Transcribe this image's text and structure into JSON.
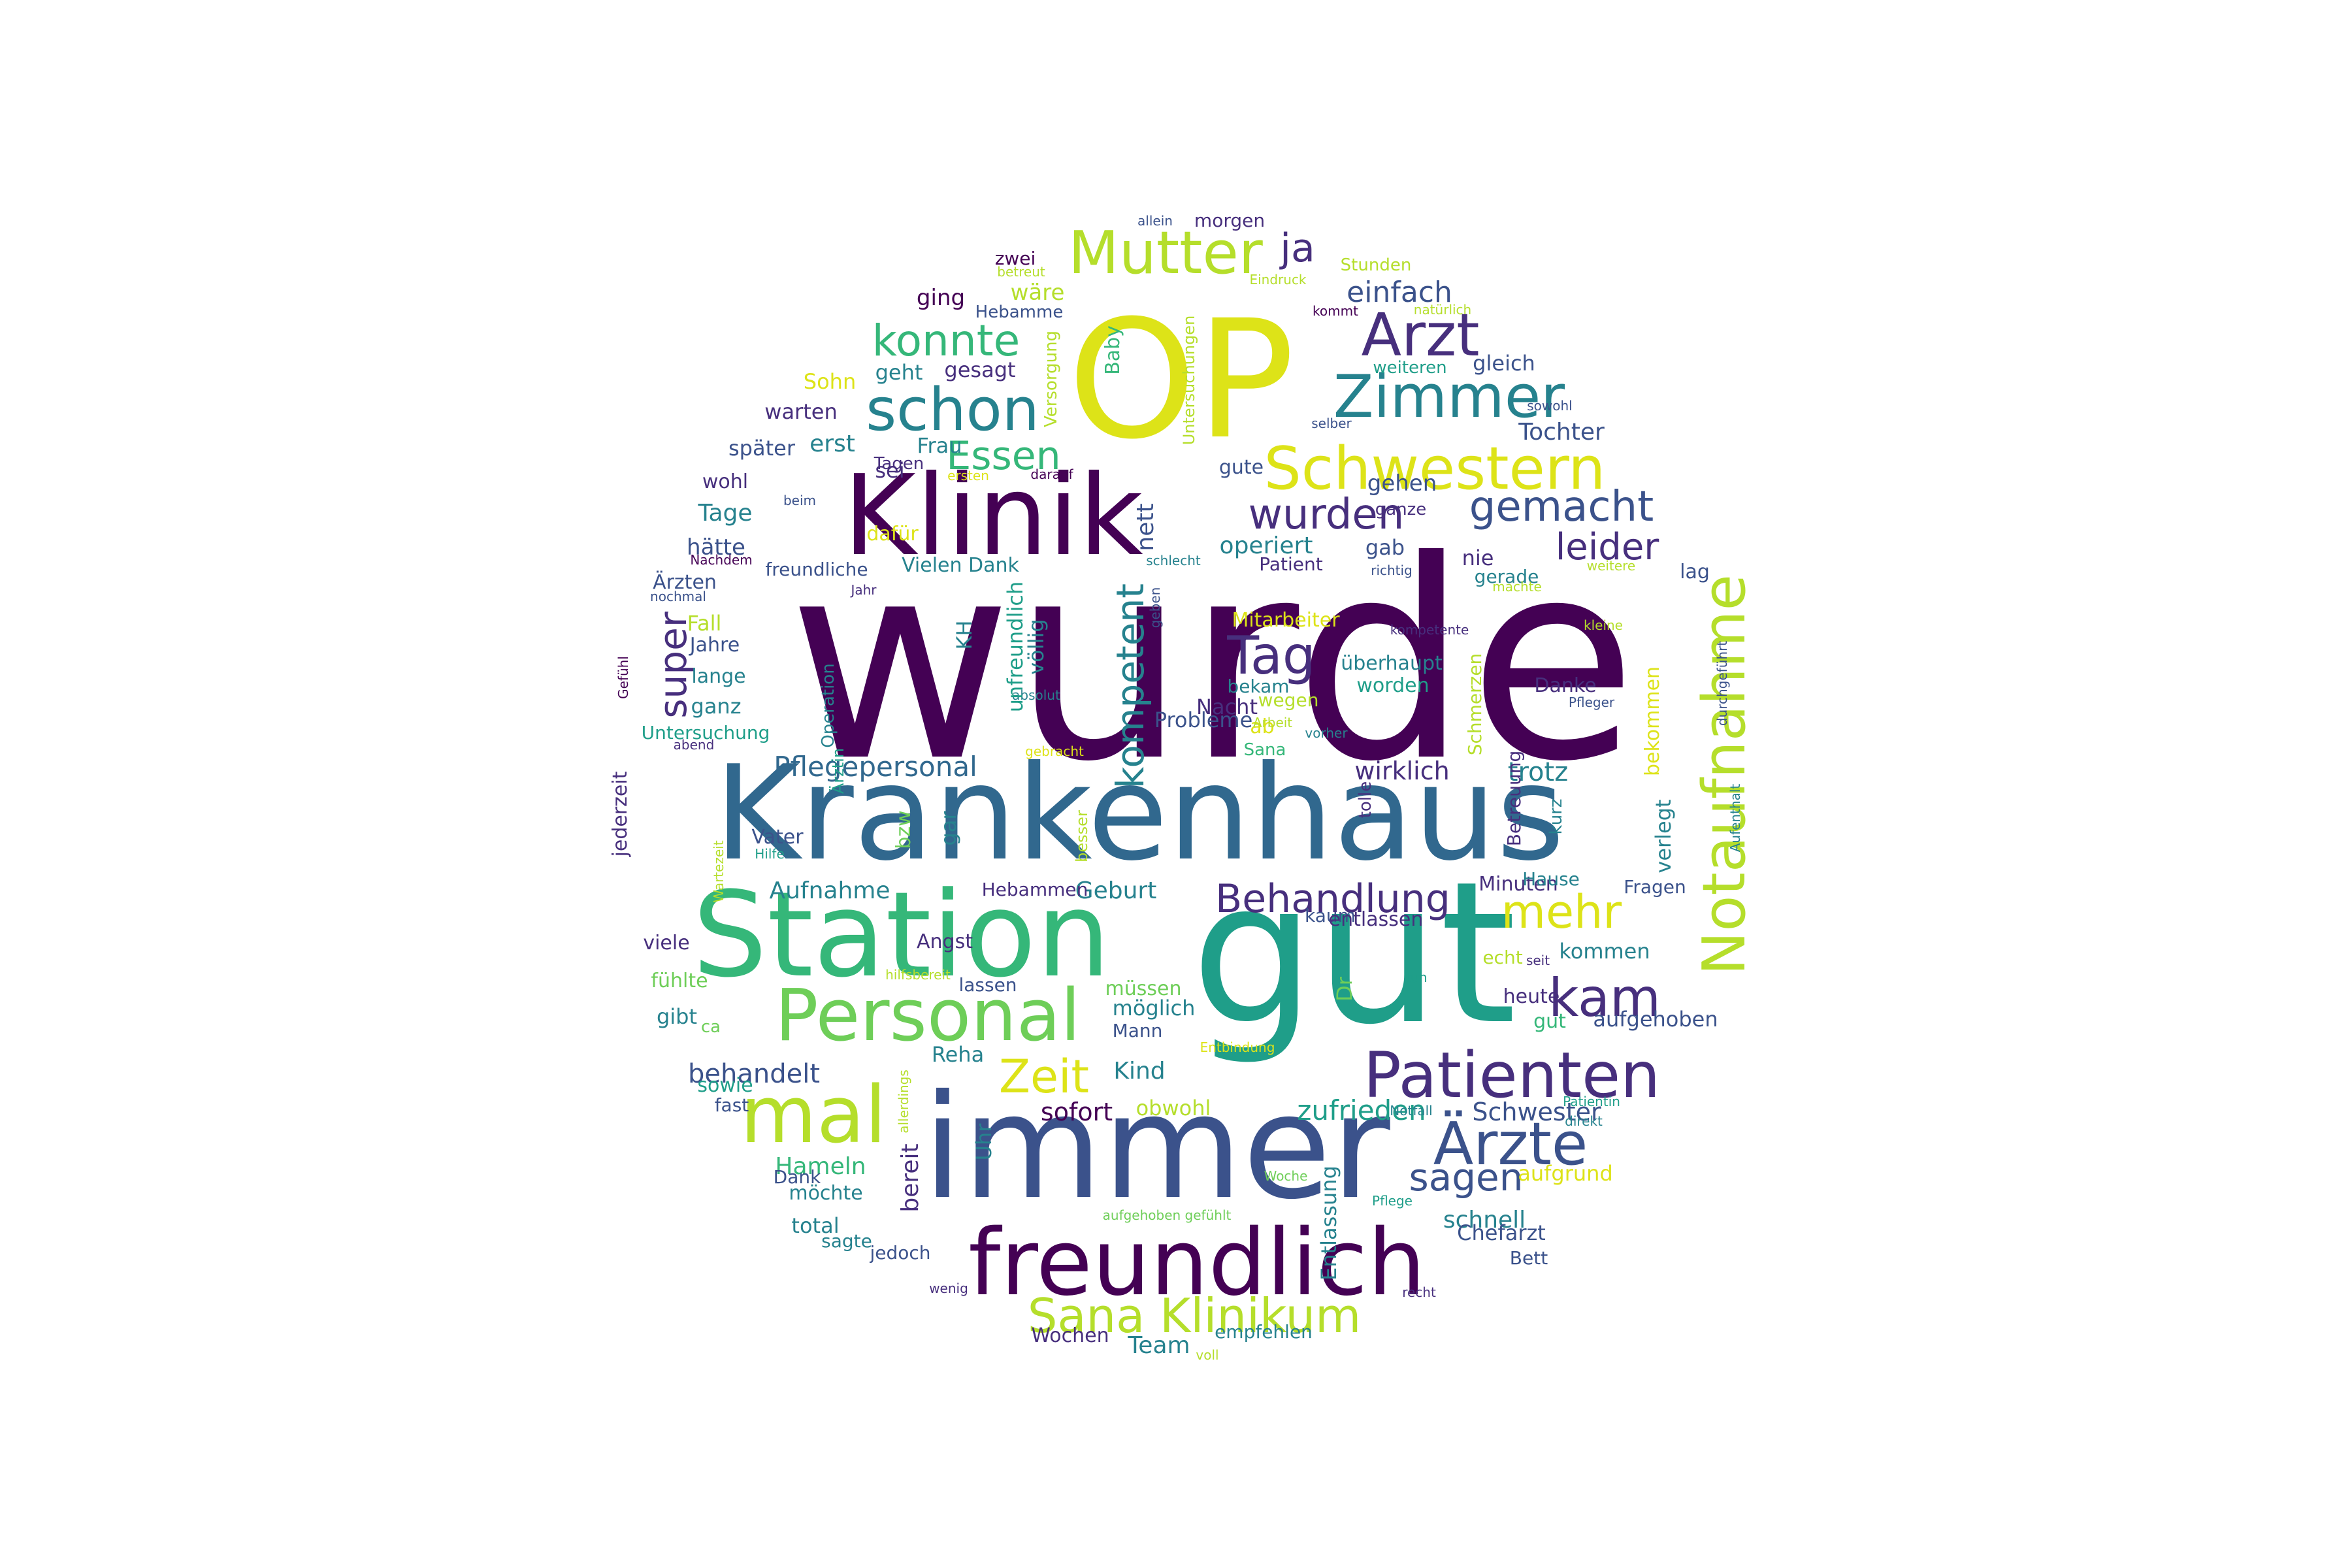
{
  "palette": {
    "dark_purple": "#440154",
    "indigo": "#472f7d",
    "blue": "#3b528b",
    "steel_blue": "#31688e",
    "teal": "#26828e",
    "sea_green": "#1f9e89",
    "green": "#35b779",
    "lime": "#6ece58",
    "yellow_green": "#b5de2b",
    "yellow": "#dde318"
  },
  "words": [
    "wurde",
    "OP",
    "gut",
    "Krankenhaus",
    "Klinik",
    "immer",
    "Station",
    "freundlich",
    "Personal",
    "Schwestern",
    "Patienten",
    "Notaufnahme",
    "Zimmer",
    "mal",
    "Arzt",
    "Mutter",
    "schon",
    "konnte",
    "Ärzte",
    "Sana Klinikum",
    "kam",
    "mehr",
    "Tag",
    "wurden",
    "gemacht",
    "Behandlung",
    "Essen",
    "leider",
    "Zeit",
    "super",
    "sagen",
    "ja",
    "kompetent",
    "einfach",
    "Pflegepersonal",
    "zufrieden",
    "Schwester",
    "behandelt",
    "Aufnahme",
    "Geburt",
    "sofort",
    "Kind",
    "Hameln",
    "schnell",
    "trotz",
    "wirklich",
    "Frau",
    "erst",
    "gesagt",
    "geht",
    "ging",
    "wäre",
    "Hebamme",
    "zwei",
    "morgen",
    "allein",
    "Stunden",
    "Eindruck",
    "betreut",
    "kommt",
    "natürlich",
    "weiteren",
    "gleich",
    "sowohl",
    "selber",
    "Tochter",
    "Sohn",
    "warten",
    "später",
    "wohl",
    "Tagen",
    "Tage",
    "sei",
    "dafür",
    "hätte",
    "Nachdem",
    "freundliche",
    "Vielen Dank",
    "Patient",
    "gab",
    "nie",
    "gerade",
    "lag",
    "operiert",
    "Ärzten",
    "nochmal",
    "Jahr",
    "Fall",
    "Jahre",
    "lange",
    "ganz",
    "Untersuchung",
    "abend",
    "Gefühl",
    "jederzeit",
    "Vater",
    "Hilfe",
    "Wartezeit",
    "viele",
    "fühlte",
    "gibt",
    "ca",
    "sowie",
    "fast",
    "Dank",
    "möchte",
    "total",
    "sagte",
    "jedoch",
    "wenig",
    "Wochen",
    "Team",
    "voll",
    "empfehlen",
    "recht",
    "Bett",
    "Chefarzt",
    "Pflege",
    "aufgrund",
    "direkt",
    "Patientin",
    "aufgehoben",
    "gut",
    "heute",
    "kommen",
    "Fragen",
    "Minuten",
    "Hause",
    "kaum",
    "entlassen",
    "Hebammen",
    "Angst",
    "lassen",
    "müssen",
    "möglich",
    "Mann",
    "Reha",
    "obwohl",
    "bereit",
    "Uhr",
    "Entbindung",
    "Woche",
    "Notfall",
    "tun",
    "seit",
    "echt",
    "Dr",
    "tolle",
    "Danke",
    "Pfleger",
    "überhaupt",
    "worden",
    "bekam",
    "Nacht",
    "wegen",
    "ab",
    "Sana",
    "Probleme",
    "Schmerzen",
    "Betreuung",
    "kurz",
    "verlegt",
    "bekommen",
    "Aufenthalt",
    "durchgeführt",
    "kompetente",
    "kleine",
    "richtig",
    "weitere",
    "machte",
    "ganze",
    "gehen",
    "nett",
    "gute",
    "beim",
    "ersten",
    "darauf",
    "schlecht",
    "geben",
    "Mitarbeiter",
    "Arbeit",
    "gebracht",
    "vorher",
    "absolut",
    "KH",
    "völlig",
    "unfreundlich",
    "Operation",
    "Ärztin",
    "bzw",
    "gar",
    "besser",
    "Entlassung",
    "Baby",
    "Untersuchungen",
    "Versorgung",
    "hilfsbereit",
    "allerdings",
    "aufgehoben gefühlt",
    "warum",
    "weiterempfehlen"
  ]
}
